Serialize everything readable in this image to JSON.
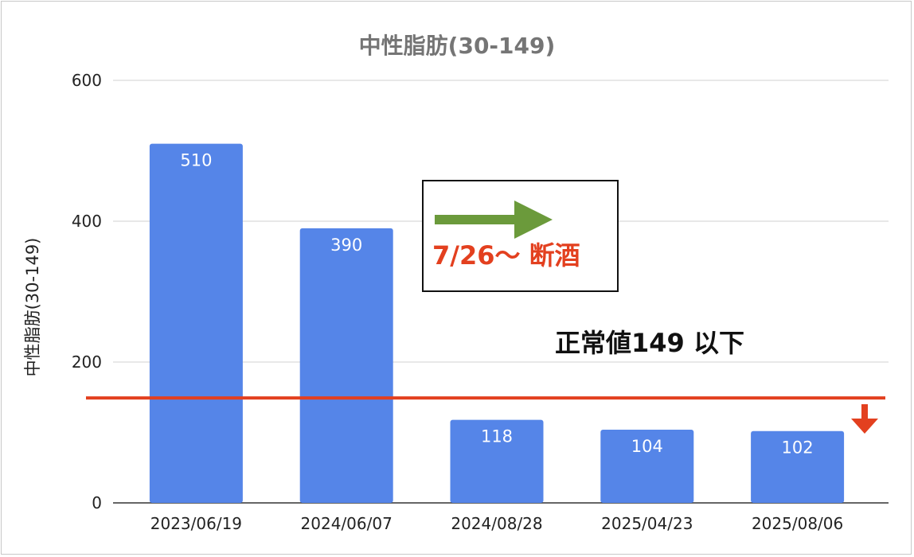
{
  "chart_data": {
    "type": "bar",
    "title": "中性脂肪(30-149)",
    "ylabel": "中性脂肪(30-149)",
    "xlabel": "",
    "categories": [
      "2023/06/19",
      "2024/06/07",
      "2024/08/28",
      "2025/04/23",
      "2025/08/06"
    ],
    "values": [
      510,
      390,
      118,
      104,
      102
    ],
    "data_labels": [
      "510",
      "390",
      "118",
      "104",
      "102"
    ],
    "ylim": [
      0,
      600
    ],
    "yticks": [
      0,
      200,
      400,
      600
    ],
    "ytick_labels": [
      "0",
      "200",
      "400",
      "600"
    ],
    "grid": true,
    "legend": "none",
    "bar_color": "#5585e8",
    "reference_line": {
      "value": 149,
      "color": "#e3401f"
    },
    "annotations": {
      "abstinence": "7/26～ 断酒",
      "normal_range": "正常値149 以下"
    },
    "arrow_color": "#6b9a3b",
    "annotation_color": "#e3401f"
  }
}
